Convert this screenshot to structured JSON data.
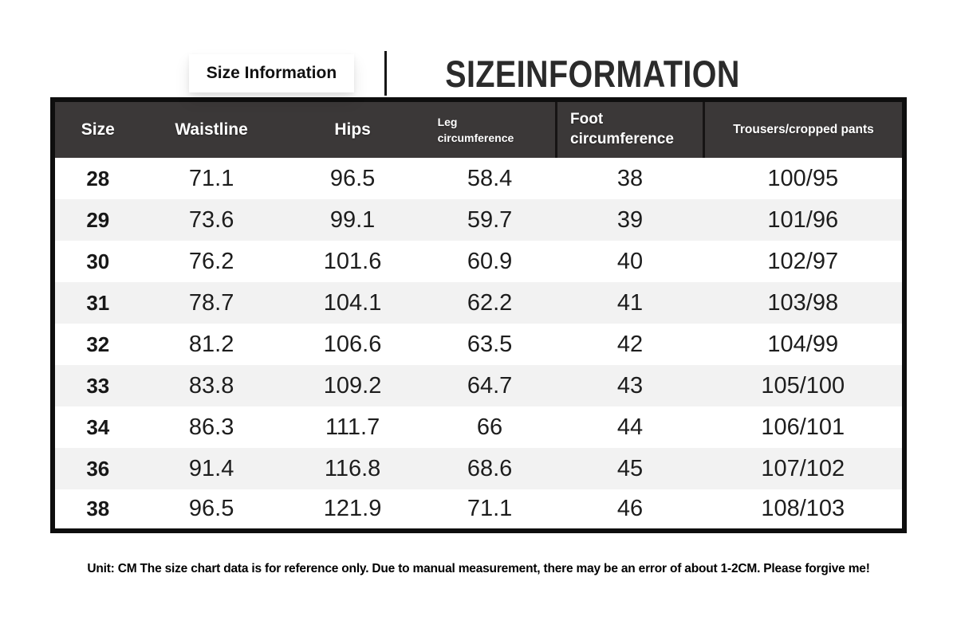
{
  "header": {
    "title_small": "Size Information",
    "title_large": "SIZEINFORMATION"
  },
  "chart_data": {
    "type": "table",
    "title": "SIZEINFORMATION",
    "unit": "CM",
    "columns": [
      "Size",
      "Waistline",
      "Hips",
      "Leg circumference",
      "Foot circumference",
      "Trousers/cropped pants"
    ],
    "column_display": [
      "Size",
      "Waistline",
      "Hips",
      "Leg\ncircumference",
      "Foot\ncircumference",
      "Trousers/cropped pants"
    ],
    "rows": [
      [
        "28",
        "71.1",
        "96.5",
        "58.4",
        "38",
        "100/95"
      ],
      [
        "29",
        "73.6",
        "99.1",
        "59.7",
        "39",
        "101/96"
      ],
      [
        "30",
        "76.2",
        "101.6",
        "60.9",
        "40",
        "102/97"
      ],
      [
        "31",
        "78.7",
        "104.1",
        "62.2",
        "41",
        "103/98"
      ],
      [
        "32",
        "81.2",
        "106.6",
        "63.5",
        "42",
        "104/99"
      ],
      [
        "33",
        "83.8",
        "109.2",
        "64.7",
        "43",
        "105/100"
      ],
      [
        "34",
        "86.3",
        "111.7",
        "66",
        "44",
        "106/101"
      ],
      [
        "36",
        "91.4",
        "116.8",
        "68.6",
        "45",
        "107/102"
      ],
      [
        "38",
        "96.5",
        "121.9",
        "71.1",
        "46",
        "108/103"
      ]
    ]
  },
  "footer": {
    "note": "Unit: CM The size chart data is for reference only. Due to manual measurement, there may be an error of about 1-2CM. Please forgive me!"
  },
  "colors": {
    "header_bg": "#3b3838",
    "header_text": "#ffffff",
    "row_alt_bg": "#f2f2f2",
    "table_border": "#0e0e0e",
    "body_text": "#1d1d1d",
    "accent_text": "#2b2b2b"
  }
}
